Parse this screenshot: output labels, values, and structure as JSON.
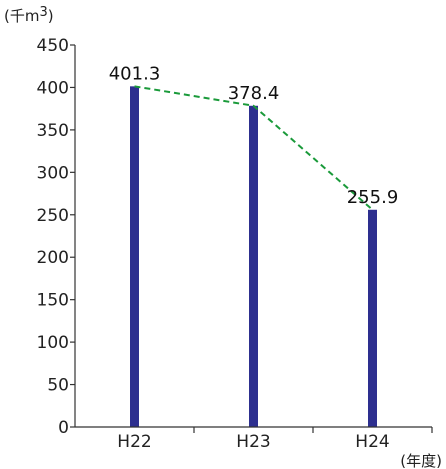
{
  "chart_data": {
    "type": "bar",
    "y_unit": "(千m",
    "y_unit_sup": "3",
    "y_unit_close": ")",
    "x_unit": "(年度)",
    "categories": [
      "H22",
      "H23",
      "H24"
    ],
    "values": [
      401.3,
      378.4,
      255.9
    ],
    "value_labels": [
      "401.3",
      "378.4",
      "255.9"
    ],
    "ylim": [
      0,
      450
    ],
    "yticks": [
      0,
      50,
      100,
      150,
      200,
      250,
      300,
      350,
      400,
      450
    ],
    "grid": false,
    "legend": "none",
    "trend_line": true,
    "colors": {
      "bar": "#2d2f8f",
      "trend": "#1a9a3a",
      "axis": "#333333"
    }
  }
}
